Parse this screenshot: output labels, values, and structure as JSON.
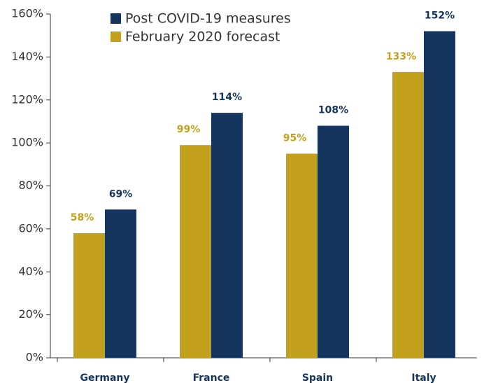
{
  "chart_data": {
    "type": "bar",
    "categories": [
      "Germany",
      "France",
      "Spain",
      "Italy"
    ],
    "series": [
      {
        "name": "Post COVID-19 measures",
        "color": "#14365e",
        "values": [
          69,
          114,
          108,
          152
        ],
        "value_labels": [
          "69%",
          "114%",
          "108%",
          "152%"
        ]
      },
      {
        "name": "February 2020 forecast",
        "color": "#c4a11d",
        "values": [
          58,
          99,
          95,
          133
        ],
        "value_labels": [
          "58%",
          "99%",
          "95%",
          "133%"
        ]
      }
    ],
    "ylim": [
      0,
      160
    ],
    "yticks": [
      {
        "value": 0,
        "label": "0%"
      },
      {
        "value": 20,
        "label": "20%"
      },
      {
        "value": 40,
        "label": "40%"
      },
      {
        "value": 60,
        "label": "60%"
      },
      {
        "value": 80,
        "label": "80%"
      },
      {
        "value": 100,
        "label": "100%"
      },
      {
        "value": 120,
        "label": "120%"
      },
      {
        "value": 140,
        "label": "140%"
      },
      {
        "value": 160,
        "label": "160%"
      }
    ],
    "legend": "upper left"
  }
}
